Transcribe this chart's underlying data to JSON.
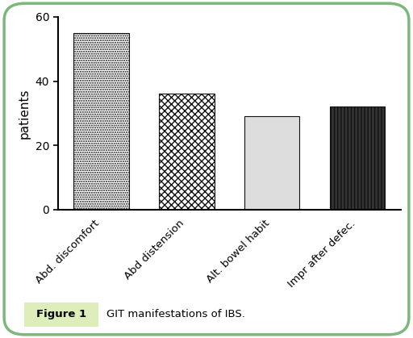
{
  "categories": [
    "Abd. discomfort",
    "Abd distension",
    "Alt. bowel habit",
    "Impr after defec."
  ],
  "values": [
    55,
    36,
    29,
    32
  ],
  "ylabel": "patients",
  "ylim": [
    0,
    60
  ],
  "yticks": [
    0,
    20,
    40,
    60
  ],
  "background_color": "#ffffff",
  "border_color": "#7cb87c",
  "figure_label": "Figure 1",
  "figure_caption": "GIT manifestations of IBS.",
  "caption_bg": "#ddeebb",
  "bar_edge_color": "#111111",
  "bar4_facecolor": "#333333"
}
